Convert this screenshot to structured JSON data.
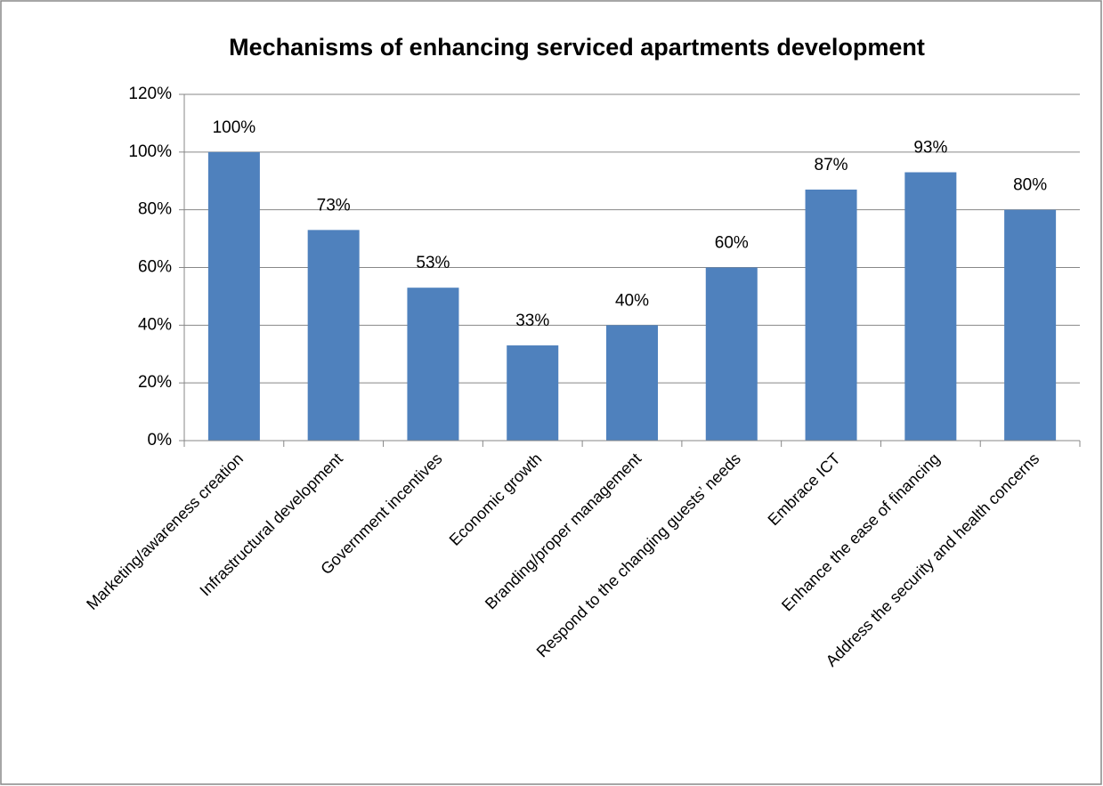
{
  "chart_data": {
    "type": "bar",
    "title": "Mechanisms of enhancing serviced apartments development",
    "categories": [
      "Marketing/awareness creation",
      "Infrastructural development",
      "Government incentives",
      "Economic growth",
      "Branding/proper management",
      "Respond to the changing guests’ needs",
      "Embrace ICT",
      "Enhance the ease of financing",
      "Address the security and health concerns"
    ],
    "values": [
      100,
      73,
      53,
      33,
      40,
      60,
      87,
      93,
      80
    ],
    "value_labels": [
      "100%",
      "73%",
      "53%",
      "33%",
      "40%",
      "60%",
      "87%",
      "93%",
      "80%"
    ],
    "color": "#4f81bd",
    "ylim": [
      0,
      120
    ],
    "yticks": [
      {
        "value": 0,
        "label": "0%"
      },
      {
        "value": 20,
        "label": "20%"
      },
      {
        "value": 40,
        "label": "40%"
      },
      {
        "value": 60,
        "label": "60%"
      },
      {
        "value": 80,
        "label": "80%"
      },
      {
        "value": 100,
        "label": "100%"
      },
      {
        "value": 120,
        "label": "120%"
      }
    ],
    "grid": true
  }
}
